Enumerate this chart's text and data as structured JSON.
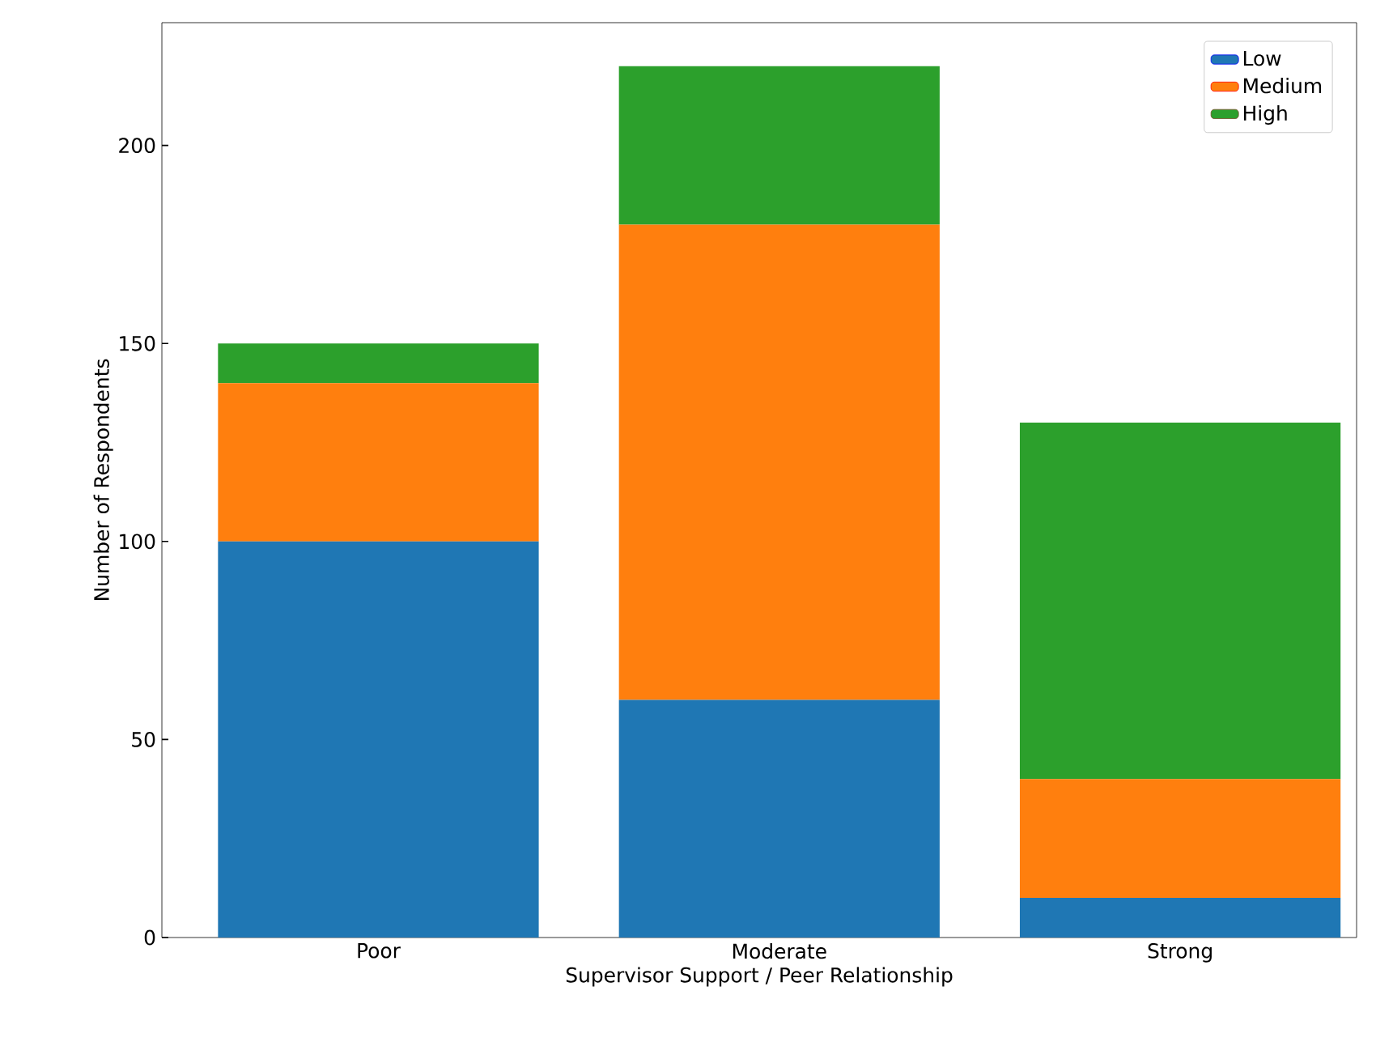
{
  "chart_data": {
    "type": "bar",
    "stacked": true,
    "xlabel": "Supervisor Support / Peer Relationship",
    "ylabel": "Number of Respondents",
    "categories": [
      "Poor",
      "Moderate",
      "Strong"
    ],
    "series": [
      {
        "name": "Low",
        "color": "#1f77b4",
        "values": [
          100,
          60,
          10
        ]
      },
      {
        "name": "Medium",
        "color": "#ff7f0e",
        "values": [
          40,
          120,
          30
        ]
      },
      {
        "name": "High",
        "color": "#2ca02c",
        "values": [
          10,
          40,
          90
        ]
      }
    ],
    "ylim": [
      0,
      231
    ],
    "yticks": [
      0,
      50,
      100,
      150,
      200
    ],
    "legend": "top right",
    "grid": false
  }
}
